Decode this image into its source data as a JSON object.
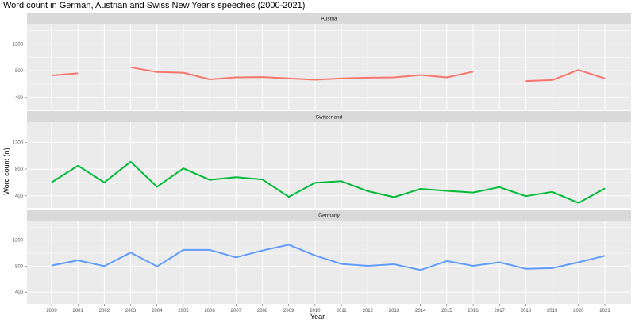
{
  "chart_data": {
    "type": "line",
    "title": "Word count in German, Austrian and Swiss New Year's speeches (2000-2021)",
    "xlabel": "Year",
    "ylabel": "Word count (n)",
    "x": [
      2000,
      2001,
      2002,
      2003,
      2004,
      2005,
      2006,
      2007,
      2008,
      2009,
      2010,
      2011,
      2012,
      2013,
      2014,
      2015,
      2016,
      2017,
      2018,
      2019,
      2020,
      2021
    ],
    "ylim": [
      220,
      1500
    ],
    "yticks": [
      400,
      800,
      1200
    ],
    "grid": true,
    "legend": "none",
    "facets": [
      {
        "name": "Austria",
        "color": "#F8766D",
        "values": [
          730,
          760,
          null,
          850,
          780,
          770,
          670,
          700,
          705,
          685,
          665,
          685,
          695,
          700,
          735,
          700,
          785,
          null,
          645,
          660,
          810,
          685
        ]
      },
      {
        "name": "Switzerland",
        "color": "#00BA38",
        "values": [
          600,
          850,
          600,
          910,
          535,
          810,
          640,
          680,
          645,
          385,
          595,
          620,
          470,
          380,
          505,
          475,
          450,
          530,
          395,
          460,
          295,
          510
        ]
      },
      {
        "name": "Germany",
        "color": "#619CFF",
        "values": [
          810,
          890,
          800,
          1010,
          795,
          1050,
          1050,
          935,
          1040,
          1130,
          965,
          835,
          805,
          830,
          740,
          880,
          805,
          860,
          760,
          770,
          860,
          960
        ]
      }
    ]
  }
}
